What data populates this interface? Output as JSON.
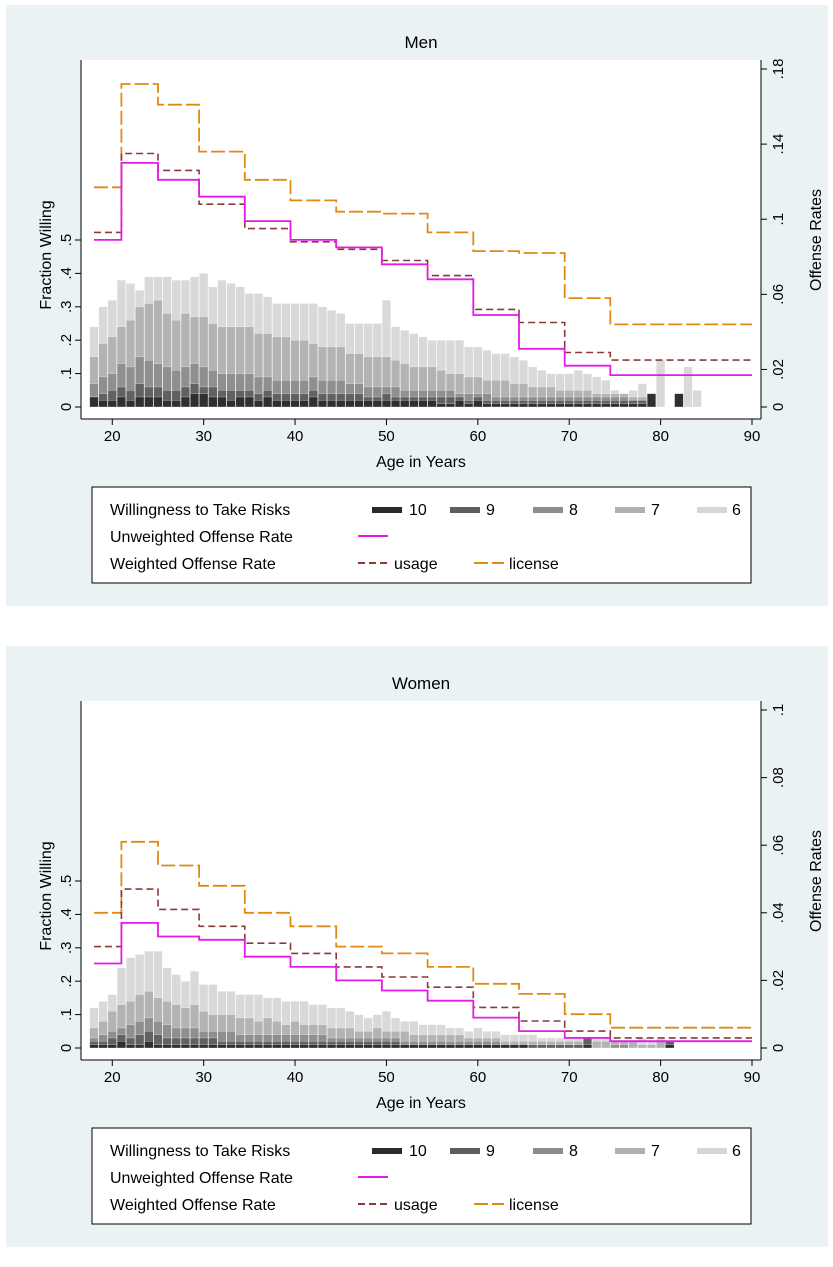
{
  "charts": [
    {
      "id": "men",
      "title": "Men",
      "xlabel": "Age in Years",
      "ylabel_left": "Fraction Willing",
      "ylabel_right": "Offense Rates",
      "x_ticks": [
        20,
        30,
        40,
        50,
        60,
        70,
        80,
        90
      ],
      "y_left_ticks": [
        "0",
        ".1",
        ".2",
        ".3",
        ".4",
        ".5"
      ],
      "y_right_ticks": [
        "0",
        ".02",
        ".06",
        ".1",
        ".14",
        ".18"
      ],
      "legend": {
        "row1_label": "Willingness to Take Risks",
        "risk_levels": [
          "10",
          "9",
          "8",
          "7",
          "6"
        ],
        "row2_label": "Unweighted Offense Rate",
        "row3_label": "Weighted Offense Rate",
        "usage_label": "usage",
        "license_label": "license"
      }
    },
    {
      "id": "women",
      "title": "Women",
      "xlabel": "Age in Years",
      "ylabel_left": "Fraction Willing",
      "ylabel_right": "Offense Rates",
      "x_ticks": [
        20,
        30,
        40,
        50,
        60,
        70,
        80,
        90
      ],
      "y_left_ticks": [
        "0",
        ".1",
        ".2",
        ".3",
        ".4",
        ".5"
      ],
      "y_right_ticks": [
        "0",
        ".02",
        ".04",
        ".06",
        ".08",
        ".1"
      ],
      "legend": {
        "row1_label": "Willingness to Take Risks",
        "risk_levels": [
          "10",
          "9",
          "8",
          "7",
          "6"
        ],
        "row2_label": "Unweighted Offense Rate",
        "row3_label": "Weighted Offense Rate",
        "usage_label": "usage",
        "license_label": "license"
      }
    }
  ],
  "colors": {
    "risk_10": "#2b2b2b",
    "risk_9": "#5e5e5e",
    "risk_8": "#8c8c8c",
    "risk_7": "#b0b0b0",
    "risk_6": "#d6d6d6",
    "unweighted": "#e619e6",
    "usage": "#8b3a3a",
    "license": "#e08a10",
    "panel_bg": "#eaf2f3"
  },
  "chart_data": [
    {
      "type": "bar+line",
      "title": "Men",
      "xlabel": "Age in Years",
      "ylabel_left": "Fraction Willing",
      "ylabel_right": "Offense Rates",
      "xlim": [
        18,
        90
      ],
      "ylim_left": [
        0,
        0.5
      ],
      "ylim_right": [
        0,
        0.18
      ],
      "bar_ages": [
        18,
        19,
        20,
        21,
        22,
        23,
        24,
        25,
        26,
        27,
        28,
        29,
        30,
        31,
        32,
        33,
        34,
        35,
        36,
        37,
        38,
        39,
        40,
        41,
        42,
        43,
        44,
        45,
        46,
        47,
        48,
        49,
        50,
        51,
        52,
        53,
        54,
        55,
        56,
        57,
        58,
        59,
        60,
        61,
        62,
        63,
        64,
        65,
        66,
        67,
        68,
        69,
        70,
        71,
        72,
        73,
        74,
        75,
        76,
        77,
        78,
        79,
        80,
        81,
        82,
        83,
        84
      ],
      "bars_cumulative": {
        "10": [
          0.03,
          0.02,
          0.02,
          0.03,
          0.02,
          0.03,
          0.03,
          0.03,
          0.02,
          0.02,
          0.03,
          0.04,
          0.04,
          0.03,
          0.03,
          0.02,
          0.03,
          0.03,
          0.02,
          0.03,
          0.02,
          0.02,
          0.02,
          0.02,
          0.03,
          0.02,
          0.02,
          0.02,
          0.02,
          0.02,
          0.02,
          0.02,
          0.02,
          0.02,
          0.02,
          0.02,
          0.02,
          0.02,
          0.01,
          0.01,
          0.02,
          0.01,
          0.02,
          0.01,
          0.01,
          0.01,
          0.01,
          0.01,
          0.01,
          0.01,
          0.01,
          0.01,
          0.01,
          0.01,
          0.01,
          0.01,
          0.01,
          0.01,
          0.01,
          0.01,
          0.01,
          0.04,
          0.0,
          0.0,
          0.04,
          0.0,
          0.0
        ],
        "9": [
          0.03,
          0.04,
          0.05,
          0.06,
          0.05,
          0.07,
          0.06,
          0.06,
          0.05,
          0.05,
          0.06,
          0.07,
          0.06,
          0.06,
          0.05,
          0.05,
          0.05,
          0.05,
          0.04,
          0.05,
          0.04,
          0.04,
          0.04,
          0.04,
          0.05,
          0.04,
          0.04,
          0.04,
          0.04,
          0.04,
          0.03,
          0.03,
          0.04,
          0.03,
          0.03,
          0.03,
          0.03,
          0.03,
          0.03,
          0.03,
          0.03,
          0.02,
          0.03,
          0.02,
          0.02,
          0.02,
          0.02,
          0.02,
          0.02,
          0.02,
          0.02,
          0.02,
          0.02,
          0.02,
          0.02,
          0.02,
          0.02,
          0.02,
          0.02,
          0.02,
          0.02,
          0.04,
          0.0,
          0.0,
          0.04,
          0.0,
          0.0
        ],
        "8": [
          0.07,
          0.09,
          0.1,
          0.13,
          0.12,
          0.15,
          0.14,
          0.13,
          0.12,
          0.11,
          0.12,
          0.13,
          0.12,
          0.11,
          0.1,
          0.1,
          0.1,
          0.1,
          0.09,
          0.09,
          0.08,
          0.08,
          0.08,
          0.08,
          0.09,
          0.08,
          0.08,
          0.08,
          0.07,
          0.07,
          0.06,
          0.06,
          0.06,
          0.06,
          0.05,
          0.05,
          0.05,
          0.05,
          0.05,
          0.05,
          0.04,
          0.04,
          0.04,
          0.04,
          0.03,
          0.03,
          0.03,
          0.03,
          0.03,
          0.03,
          0.03,
          0.03,
          0.03,
          0.03,
          0.03,
          0.03,
          0.03,
          0.03,
          0.03,
          0.02,
          0.02,
          0.04,
          0.0,
          0.0,
          0.04,
          0.0,
          0.0
        ],
        "7": [
          0.15,
          0.19,
          0.21,
          0.24,
          0.26,
          0.3,
          0.31,
          0.32,
          0.28,
          0.26,
          0.28,
          0.27,
          0.27,
          0.25,
          0.24,
          0.24,
          0.24,
          0.24,
          0.22,
          0.22,
          0.21,
          0.21,
          0.2,
          0.2,
          0.19,
          0.18,
          0.18,
          0.18,
          0.16,
          0.16,
          0.15,
          0.15,
          0.15,
          0.14,
          0.13,
          0.12,
          0.12,
          0.12,
          0.11,
          0.1,
          0.1,
          0.09,
          0.09,
          0.08,
          0.08,
          0.08,
          0.07,
          0.07,
          0.06,
          0.06,
          0.06,
          0.05,
          0.05,
          0.05,
          0.05,
          0.04,
          0.04,
          0.04,
          0.04,
          0.03,
          0.03,
          0.04,
          0.0,
          0.0,
          0.04,
          0.0,
          0.0
        ],
        "6": [
          0.24,
          0.3,
          0.32,
          0.38,
          0.37,
          0.35,
          0.39,
          0.39,
          0.39,
          0.38,
          0.38,
          0.39,
          0.4,
          0.36,
          0.38,
          0.37,
          0.36,
          0.34,
          0.34,
          0.33,
          0.31,
          0.31,
          0.31,
          0.31,
          0.31,
          0.3,
          0.29,
          0.28,
          0.25,
          0.25,
          0.25,
          0.25,
          0.32,
          0.24,
          0.23,
          0.22,
          0.21,
          0.2,
          0.2,
          0.2,
          0.2,
          0.18,
          0.18,
          0.17,
          0.16,
          0.16,
          0.15,
          0.14,
          0.12,
          0.11,
          0.1,
          0.1,
          0.1,
          0.11,
          0.1,
          0.09,
          0.08,
          0.05,
          0.04,
          0.05,
          0.07,
          0.04,
          0.14,
          0.0,
          0.04,
          0.12,
          0.05
        ]
      },
      "unweighted_offense_rate": {
        "x": [
          18,
          20.5,
          21,
          25,
          29.5,
          34.5,
          39.5,
          44.5,
          49.5,
          54.5,
          59.5,
          64.5,
          69.5,
          74.5,
          90
        ],
        "y": [
          0.089,
          0.089,
          0.13,
          0.121,
          0.112,
          0.099,
          0.089,
          0.085,
          0.076,
          0.068,
          0.049,
          0.031,
          0.022,
          0.017,
          0.017
        ]
      },
      "weighted_usage": {
        "x": [
          18,
          20.5,
          21,
          25,
          29.5,
          34.5,
          39.5,
          44.5,
          49.5,
          54.5,
          59.5,
          64.5,
          69.5,
          74.5,
          90
        ],
        "y": [
          0.093,
          0.093,
          0.135,
          0.126,
          0.108,
          0.095,
          0.088,
          0.084,
          0.078,
          0.07,
          0.052,
          0.045,
          0.029,
          0.025,
          0.025
        ]
      },
      "weighted_license": {
        "x": [
          18,
          20.5,
          21,
          25,
          29.5,
          34.5,
          39.5,
          44.5,
          49.5,
          54.5,
          59.5,
          64.5,
          69.5,
          74.5,
          90
        ],
        "y": [
          0.117,
          0.117,
          0.172,
          0.161,
          0.136,
          0.121,
          0.11,
          0.104,
          0.103,
          0.093,
          0.083,
          0.082,
          0.058,
          0.044,
          0.044
        ]
      }
    },
    {
      "type": "bar+line",
      "title": "Women",
      "xlabel": "Age in Years",
      "ylabel_left": "Fraction Willing",
      "ylabel_right": "Offense Rates",
      "xlim": [
        18,
        90
      ],
      "ylim_left": [
        0,
        0.5
      ],
      "ylim_right": [
        0,
        0.1
      ],
      "bar_ages": [
        18,
        19,
        20,
        21,
        22,
        23,
        24,
        25,
        26,
        27,
        28,
        29,
        30,
        31,
        32,
        33,
        34,
        35,
        36,
        37,
        38,
        39,
        40,
        41,
        42,
        43,
        44,
        45,
        46,
        47,
        48,
        49,
        50,
        51,
        52,
        53,
        54,
        55,
        56,
        57,
        58,
        59,
        60,
        61,
        62,
        63,
        64,
        65,
        66,
        67,
        68,
        69,
        70,
        71,
        72,
        73,
        74,
        75,
        76,
        77,
        78,
        79,
        80,
        81,
        82,
        83,
        84
      ],
      "bars_cumulative": {
        "10": [
          0.01,
          0.01,
          0.01,
          0.02,
          0.01,
          0.01,
          0.02,
          0.01,
          0.01,
          0.01,
          0.01,
          0.01,
          0.01,
          0.01,
          0.01,
          0.01,
          0.01,
          0.01,
          0.01,
          0.01,
          0.01,
          0.01,
          0.01,
          0.01,
          0.01,
          0.01,
          0.01,
          0.01,
          0.01,
          0.01,
          0.01,
          0.01,
          0.01,
          0.01,
          0.01,
          0.01,
          0.01,
          0.01,
          0.01,
          0.01,
          0.01,
          0.01,
          0.01,
          0.01,
          0.01,
          0.01,
          0.01,
          0.01,
          0.0,
          0.0,
          0.0,
          0.0,
          0.0,
          0.0,
          0.01,
          0.0,
          0.0,
          0.0,
          0.0,
          0.0,
          0.0,
          0.0,
          0.0,
          0.01,
          0.0,
          0.0,
          0.0
        ],
        "9": [
          0.02,
          0.02,
          0.03,
          0.04,
          0.03,
          0.04,
          0.05,
          0.04,
          0.03,
          0.03,
          0.03,
          0.03,
          0.03,
          0.03,
          0.02,
          0.02,
          0.02,
          0.02,
          0.02,
          0.02,
          0.02,
          0.02,
          0.02,
          0.02,
          0.02,
          0.02,
          0.02,
          0.02,
          0.02,
          0.02,
          0.02,
          0.02,
          0.02,
          0.02,
          0.01,
          0.01,
          0.01,
          0.01,
          0.01,
          0.01,
          0.01,
          0.01,
          0.01,
          0.01,
          0.01,
          0.01,
          0.01,
          0.01,
          0.01,
          0.01,
          0.01,
          0.01,
          0.01,
          0.01,
          0.03,
          0.0,
          0.0,
          0.0,
          0.0,
          0.0,
          0.0,
          0.0,
          0.0,
          0.02,
          0.0,
          0.0,
          0.0
        ],
        "8": [
          0.03,
          0.04,
          0.05,
          0.06,
          0.07,
          0.08,
          0.09,
          0.08,
          0.07,
          0.06,
          0.06,
          0.06,
          0.05,
          0.05,
          0.05,
          0.05,
          0.04,
          0.04,
          0.04,
          0.04,
          0.04,
          0.04,
          0.04,
          0.04,
          0.04,
          0.04,
          0.03,
          0.03,
          0.03,
          0.03,
          0.03,
          0.03,
          0.03,
          0.03,
          0.02,
          0.02,
          0.02,
          0.02,
          0.02,
          0.02,
          0.02,
          0.02,
          0.02,
          0.02,
          0.02,
          0.01,
          0.01,
          0.01,
          0.01,
          0.01,
          0.01,
          0.01,
          0.01,
          0.01,
          0.03,
          0.0,
          0.0,
          0.01,
          0.01,
          0.0,
          0.0,
          0.0,
          0.0,
          0.02,
          0.0,
          0.0,
          0.0
        ],
        "7": [
          0.06,
          0.08,
          0.11,
          0.13,
          0.14,
          0.16,
          0.17,
          0.15,
          0.14,
          0.13,
          0.12,
          0.13,
          0.11,
          0.1,
          0.1,
          0.1,
          0.09,
          0.09,
          0.08,
          0.09,
          0.08,
          0.07,
          0.08,
          0.07,
          0.07,
          0.07,
          0.06,
          0.06,
          0.06,
          0.05,
          0.05,
          0.06,
          0.05,
          0.05,
          0.05,
          0.04,
          0.04,
          0.04,
          0.04,
          0.04,
          0.04,
          0.03,
          0.03,
          0.03,
          0.03,
          0.02,
          0.02,
          0.02,
          0.02,
          0.02,
          0.02,
          0.02,
          0.02,
          0.02,
          0.03,
          0.02,
          0.02,
          0.02,
          0.02,
          0.02,
          0.01,
          0.01,
          0.02,
          0.02,
          0.0,
          0.0,
          0.0
        ],
        "6": [
          0.12,
          0.14,
          0.16,
          0.24,
          0.27,
          0.28,
          0.29,
          0.29,
          0.24,
          0.22,
          0.2,
          0.23,
          0.19,
          0.19,
          0.17,
          0.17,
          0.16,
          0.16,
          0.16,
          0.15,
          0.15,
          0.14,
          0.14,
          0.14,
          0.13,
          0.13,
          0.12,
          0.12,
          0.11,
          0.1,
          0.09,
          0.1,
          0.11,
          0.09,
          0.08,
          0.08,
          0.07,
          0.07,
          0.07,
          0.06,
          0.06,
          0.05,
          0.06,
          0.05,
          0.05,
          0.04,
          0.04,
          0.04,
          0.04,
          0.03,
          0.03,
          0.03,
          0.03,
          0.03,
          0.03,
          0.03,
          0.03,
          0.02,
          0.02,
          0.02,
          0.03,
          0.02,
          0.03,
          0.02,
          0.0,
          0.0,
          0.0
        ]
      },
      "unweighted_offense_rate": {
        "x": [
          18,
          20.5,
          21,
          25,
          29.5,
          34.5,
          39.5,
          44.5,
          49.5,
          54.5,
          59.5,
          64.5,
          69.5,
          74.5,
          90
        ],
        "y": [
          0.025,
          0.025,
          0.037,
          0.033,
          0.032,
          0.027,
          0.024,
          0.02,
          0.017,
          0.014,
          0.009,
          0.005,
          0.003,
          0.002,
          0.002
        ]
      },
      "weighted_usage": {
        "x": [
          18,
          20.5,
          21,
          25,
          29.5,
          34.5,
          39.5,
          44.5,
          49.5,
          54.5,
          59.5,
          64.5,
          69.5,
          74.5,
          90
        ],
        "y": [
          0.03,
          0.03,
          0.047,
          0.041,
          0.036,
          0.031,
          0.028,
          0.024,
          0.021,
          0.018,
          0.012,
          0.008,
          0.005,
          0.003,
          0.003
        ]
      },
      "weighted_license": {
        "x": [
          18,
          20.5,
          21,
          25,
          29.5,
          34.5,
          39.5,
          44.5,
          49.5,
          54.5,
          59.5,
          64.5,
          69.5,
          74.5,
          90
        ],
        "y": [
          0.04,
          0.04,
          0.061,
          0.054,
          0.048,
          0.04,
          0.036,
          0.03,
          0.028,
          0.024,
          0.019,
          0.016,
          0.01,
          0.006,
          0.006
        ]
      }
    }
  ]
}
